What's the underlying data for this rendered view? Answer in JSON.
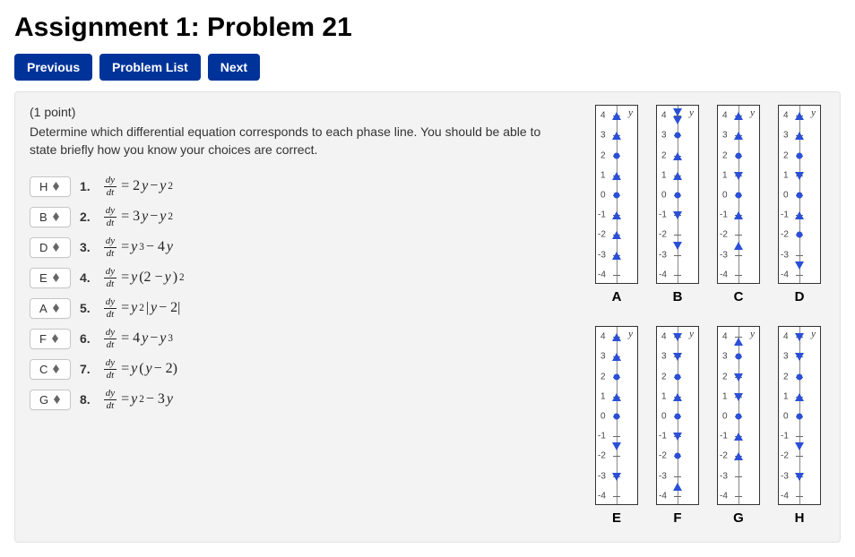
{
  "title": "Assignment 1: Problem 21",
  "nav": {
    "previous": "Previous",
    "problem_list": "Problem List",
    "next": "Next"
  },
  "points_text": "(1 point)",
  "prompt_text": "Determine which differential equation corresponds to each phase line. You should be able to state briefly how you know your choices are correct.",
  "colors": {
    "nav_button_bg": "#003399",
    "arrow_color": "#2a4fd8",
    "panel_bg": "#f3f3f3"
  },
  "equations": [
    {
      "n": "1.",
      "selected": "H",
      "latex": "dy/dt = 2y − y²",
      "html": "<span class='frac'><span class='fn'>dy</span><span class='fd'>dt</span></span> = 2<span class='mi'>y</span> − <span class='mi'>y</span><sup>2</sup>"
    },
    {
      "n": "2.",
      "selected": "B",
      "latex": "dy/dt = 3y − y²",
      "html": "<span class='frac'><span class='fn'>dy</span><span class='fd'>dt</span></span> = 3<span class='mi'>y</span> − <span class='mi'>y</span><sup>2</sup>"
    },
    {
      "n": "3.",
      "selected": "D",
      "latex": "dy/dt = y³ − 4y",
      "html": "<span class='frac'><span class='fn'>dy</span><span class='fd'>dt</span></span> = <span class='mi'>y</span><sup>3</sup> − 4<span class='mi'>y</span>"
    },
    {
      "n": "4.",
      "selected": "E",
      "latex": "dy/dt = y(2 − y)²",
      "html": "<span class='frac'><span class='fn'>dy</span><span class='fd'>dt</span></span> = <span class='mi'>y</span>(2 − <span class='mi'>y</span>)<sup>2</sup>"
    },
    {
      "n": "5.",
      "selected": "A",
      "latex": "dy/dt = y²|y − 2|",
      "html": "<span class='frac'><span class='fn'>dy</span><span class='fd'>dt</span></span> = <span class='mi'>y</span><sup>2</sup>|<span class='mi'>y</span> − 2|"
    },
    {
      "n": "6.",
      "selected": "F",
      "latex": "dy/dt = 4y − y³",
      "html": "<span class='frac'><span class='fn'>dy</span><span class='fd'>dt</span></span> = 4<span class='mi'>y</span> − <span class='mi'>y</span><sup>3</sup>"
    },
    {
      "n": "7.",
      "selected": "C",
      "latex": "dy/dt = y(y − 2)",
      "html": "<span class='frac'><span class='fn'>dy</span><span class='fd'>dt</span></span> = <span class='mi'>y</span>(<span class='mi'>y</span> − 2)"
    },
    {
      "n": "8.",
      "selected": "G",
      "latex": "dy/dt = y² − 3y",
      "html": "<span class='frac'><span class='fn'>dy</span><span class='fd'>dt</span></span> = <span class='mi'>y</span><sup>2</sup> − 3<span class='mi'>y</span>"
    }
  ],
  "phase_axis": {
    "y_label": "y",
    "ymin": -4.5,
    "ymax": 4.5,
    "ticks": [
      4,
      3,
      2,
      1,
      0,
      -1,
      -2,
      -3,
      -4
    ]
  },
  "phase_lines": [
    {
      "label": "A",
      "equilibria": [
        0,
        2
      ],
      "arrows": [
        {
          "at": -3,
          "dir": "up"
        },
        {
          "at": -2,
          "dir": "up"
        },
        {
          "at": -1,
          "dir": "up"
        },
        {
          "at": 1,
          "dir": "up"
        },
        {
          "at": 3,
          "dir": "up"
        },
        {
          "at": 4,
          "dir": "up"
        }
      ]
    },
    {
      "label": "B",
      "equilibria": [
        0,
        3
      ],
      "arrows": [
        {
          "at": -2.5,
          "dir": "down"
        },
        {
          "at": -1,
          "dir": "down"
        },
        {
          "at": 1,
          "dir": "up"
        },
        {
          "at": 2,
          "dir": "up"
        },
        {
          "at": 3.8,
          "dir": "down"
        },
        {
          "at": 4.2,
          "dir": "down"
        }
      ]
    },
    {
      "label": "C",
      "equilibria": [
        0,
        2
      ],
      "arrows": [
        {
          "at": -2.5,
          "dir": "up"
        },
        {
          "at": -1,
          "dir": "up"
        },
        {
          "at": 1,
          "dir": "down"
        },
        {
          "at": 3,
          "dir": "up"
        },
        {
          "at": 4,
          "dir": "up"
        }
      ]
    },
    {
      "label": "D",
      "equilibria": [
        -2,
        0,
        2
      ],
      "arrows": [
        {
          "at": -3.5,
          "dir": "down"
        },
        {
          "at": -1,
          "dir": "up"
        },
        {
          "at": 1,
          "dir": "down"
        },
        {
          "at": 3,
          "dir": "up"
        },
        {
          "at": 4,
          "dir": "up"
        }
      ]
    },
    {
      "label": "E",
      "equilibria": [
        0,
        2
      ],
      "arrows": [
        {
          "at": -3,
          "dir": "down"
        },
        {
          "at": -1.5,
          "dir": "down"
        },
        {
          "at": 1,
          "dir": "up"
        },
        {
          "at": 3,
          "dir": "up"
        },
        {
          "at": 4,
          "dir": "up"
        }
      ]
    },
    {
      "label": "F",
      "equilibria": [
        -2,
        0,
        2
      ],
      "arrows": [
        {
          "at": -3.5,
          "dir": "up"
        },
        {
          "at": -1,
          "dir": "down"
        },
        {
          "at": 1,
          "dir": "up"
        },
        {
          "at": 3,
          "dir": "down"
        },
        {
          "at": 4,
          "dir": "down"
        }
      ]
    },
    {
      "label": "G",
      "equilibria": [
        0,
        3
      ],
      "arrows": [
        {
          "at": -2,
          "dir": "up"
        },
        {
          "at": -1,
          "dir": "up"
        },
        {
          "at": 1,
          "dir": "down"
        },
        {
          "at": 2,
          "dir": "down"
        },
        {
          "at": 3.8,
          "dir": "up"
        }
      ]
    },
    {
      "label": "H",
      "equilibria": [
        0,
        2
      ],
      "arrows": [
        {
          "at": -3,
          "dir": "down"
        },
        {
          "at": -1.5,
          "dir": "down"
        },
        {
          "at": 1,
          "dir": "up"
        },
        {
          "at": 3,
          "dir": "down"
        },
        {
          "at": 4,
          "dir": "down"
        }
      ]
    }
  ]
}
